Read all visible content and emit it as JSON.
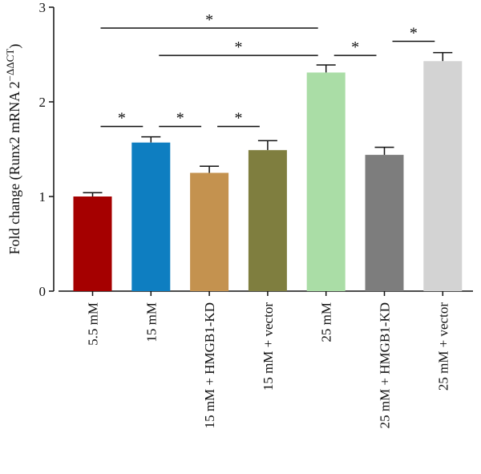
{
  "chart_data": {
    "type": "bar",
    "ylabel": "Fold change (Runx2 mRNA 2",
    "ylabel_sup": "−ΔΔCT",
    "ylabel_close": ")",
    "ylim": [
      0,
      3
    ],
    "yticks": [
      0,
      1,
      2,
      3
    ],
    "categories": [
      "5.5 mM",
      "15 mM",
      "15 mM + HMGB1-KD",
      "15 mM + vector",
      "25 mM",
      "25 mM + HMGB1-KD",
      "25 mM + vector"
    ],
    "values": [
      1.0,
      1.57,
      1.25,
      1.49,
      2.31,
      1.44,
      2.43
    ],
    "errors": [
      0.04,
      0.06,
      0.07,
      0.1,
      0.08,
      0.08,
      0.09
    ],
    "colors": [
      "#a50000",
      "#0e7ec1",
      "#c4924f",
      "#7f7e3f",
      "#aadda6",
      "#7d7d7d",
      "#d3d3d3"
    ],
    "significance": [
      {
        "from": 0,
        "to": 1,
        "y": 1.74,
        "label": "*"
      },
      {
        "from": 1,
        "to": 2,
        "y": 1.74,
        "label": "*"
      },
      {
        "from": 3,
        "to": 2,
        "y": 1.74,
        "label": "*"
      },
      {
        "from": 0,
        "to": 4,
        "y": 2.78,
        "label": "*"
      },
      {
        "from": 1,
        "to": 4,
        "y": 2.49,
        "label": "*"
      },
      {
        "from": 4,
        "to": 5,
        "y": 2.49,
        "label": "*"
      },
      {
        "from": 6,
        "to": 5,
        "y": 2.64,
        "label": "*"
      }
    ]
  }
}
